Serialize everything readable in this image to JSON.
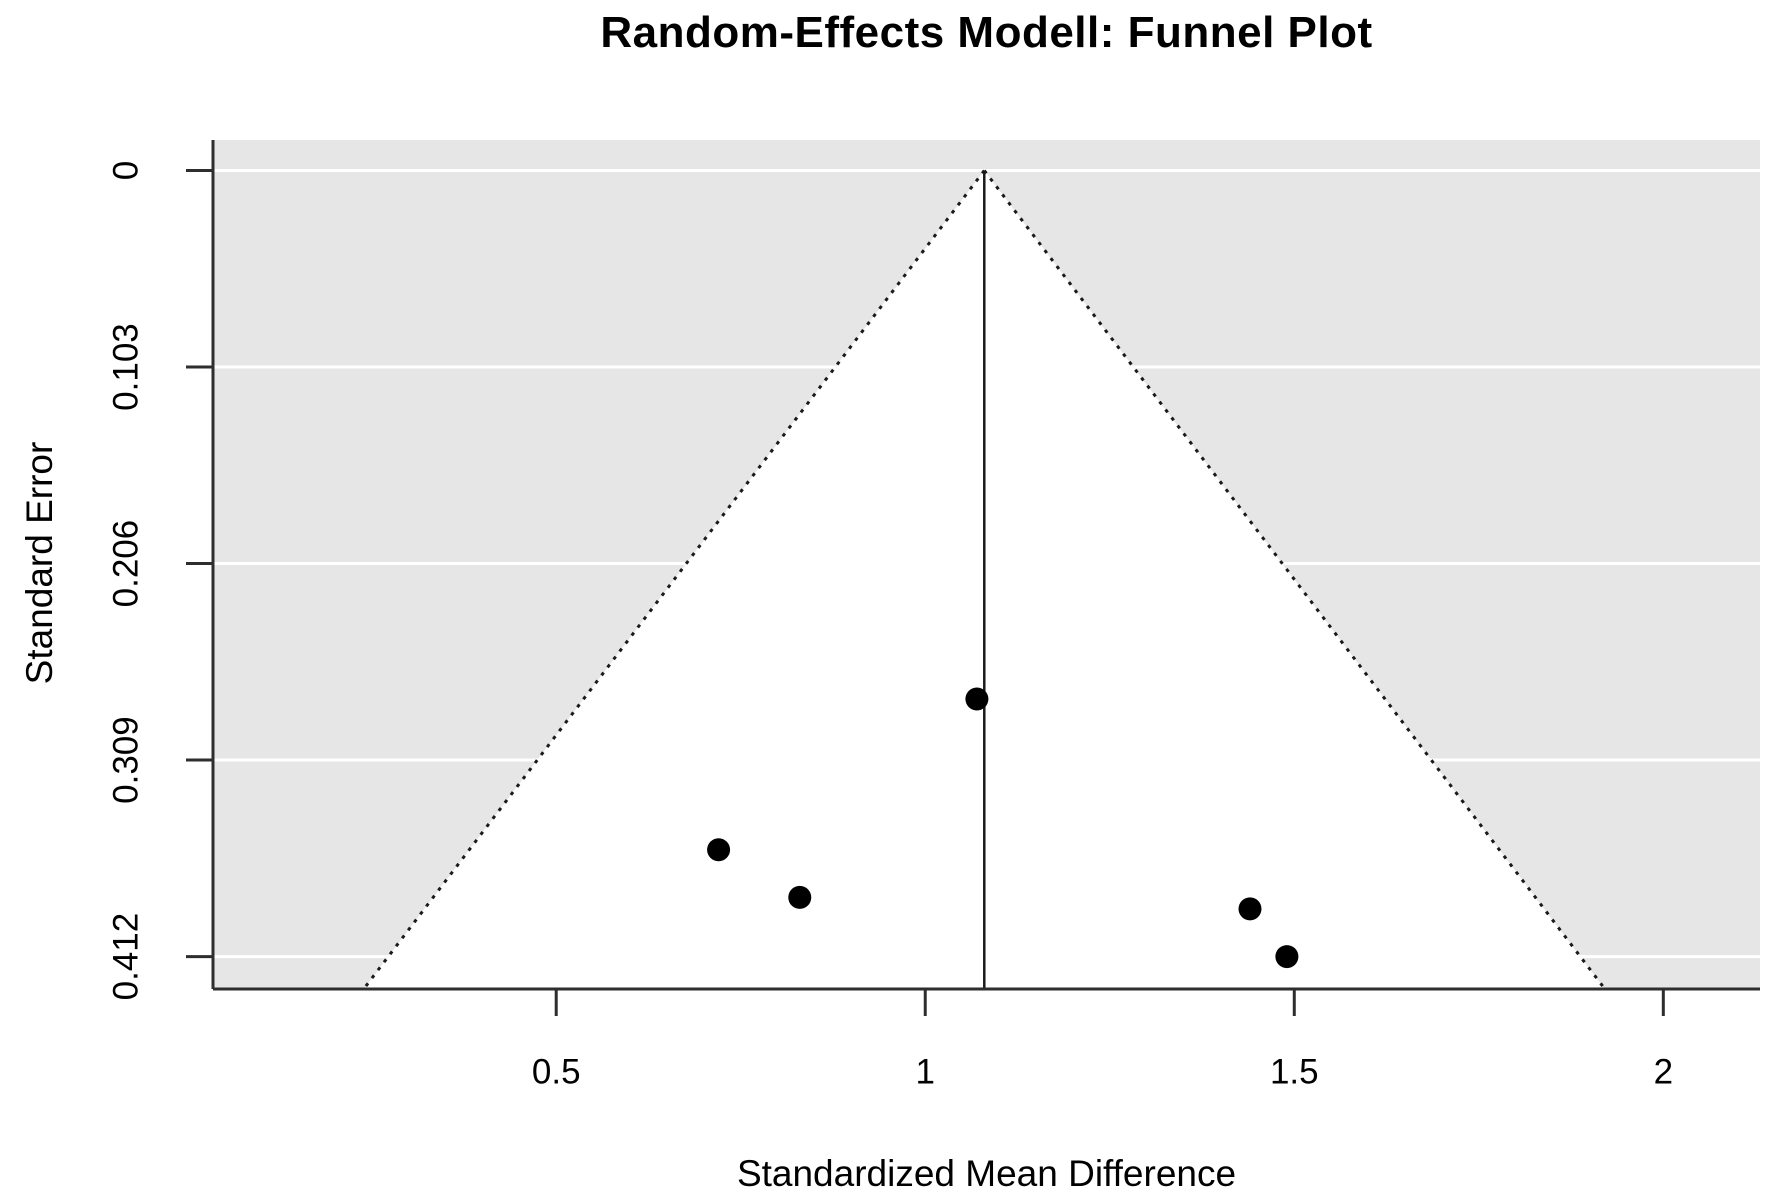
{
  "page": {
    "background_color": "#ffffff"
  },
  "chart_data": {
    "type": "scatter",
    "chart_kind": "meta-analysis-funnel-plot",
    "title": "Random-Effects Modell: Funnel Plot",
    "xlabel": "Standardized Mean Difference",
    "ylabel": "Standard Error",
    "x_ticks": [
      {
        "value": 0.5,
        "label": "0.5"
      },
      {
        "value": 1.0,
        "label": "1"
      },
      {
        "value": 1.5,
        "label": "1.5"
      },
      {
        "value": 2.0,
        "label": "2"
      }
    ],
    "y_ticks": [
      {
        "value": 0.0,
        "label": "0"
      },
      {
        "value": 0.103,
        "label": "0.103"
      },
      {
        "value": 0.206,
        "label": "0.206"
      },
      {
        "value": 0.309,
        "label": "0.309"
      },
      {
        "value": 0.412,
        "label": "0.412"
      }
    ],
    "xlim": [
      0.035,
      2.131
    ],
    "ylim_se": [
      -0.016,
      0.429
    ],
    "y_axis_reversed": true,
    "grid": {
      "horizontal_lines_at_y_ticks": true
    },
    "pooled_estimate_smd": 1.08,
    "pseudo_ci_z": 1.96,
    "points": [
      {
        "smd": 0.72,
        "se": 0.356
      },
      {
        "smd": 0.83,
        "se": 0.381
      },
      {
        "smd": 1.07,
        "se": 0.277
      },
      {
        "smd": 1.44,
        "se": 0.387
      },
      {
        "smd": 1.49,
        "se": 0.412
      }
    ],
    "colors": {
      "plot_background": "#e6e6e6",
      "funnel_fill": "#ffffff",
      "gridline": "#ffffff",
      "axis": "#2e2e2e",
      "funnel_border": "#1a1a1a",
      "estimate_line": "#1a1a1a",
      "point": "#000000",
      "text": "#000000"
    }
  }
}
